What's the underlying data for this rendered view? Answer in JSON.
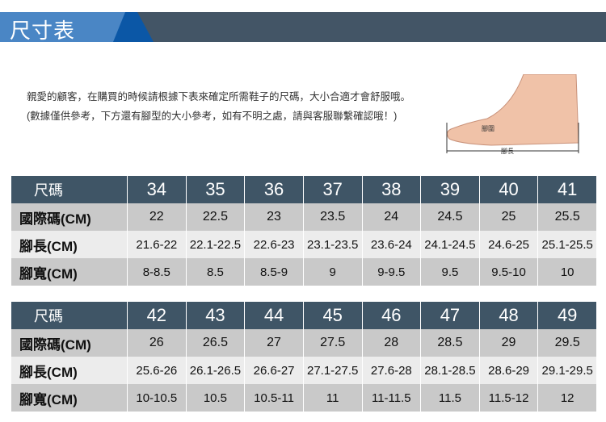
{
  "banner": {
    "title": "尺寸表"
  },
  "intro": "親愛的顧客，在購買的時候請根據下表來確定所需鞋子的尺碼，大小合適才會舒服哦。 (數據僅供參考，下方還有腳型的大小參考，如有不明之處，請與客服聯繫確認哦！)",
  "foot_labels": {
    "girth": "腳圍",
    "length": "腳長"
  },
  "row_labels": {
    "size": "尺碼",
    "intl": "國際碼(CM)",
    "length": "腳長(CM)",
    "width": "腳寬(CM)"
  },
  "tables": [
    {
      "sizes": [
        "34",
        "35",
        "36",
        "37",
        "38",
        "39",
        "40",
        "41"
      ],
      "intl": [
        "22",
        "22.5",
        "23",
        "23.5",
        "24",
        "24.5",
        "25",
        "25.5"
      ],
      "length": [
        "21.6-22",
        "22.1-22.5",
        "22.6-23",
        "23.1-23.5",
        "23.6-24",
        "24.1-24.5",
        "24.6-25",
        "25.1-25.5"
      ],
      "width": [
        "8-8.5",
        "8.5",
        "8.5-9",
        "9",
        "9-9.5",
        "9.5",
        "9.5-10",
        "10"
      ]
    },
    {
      "sizes": [
        "42",
        "43",
        "44",
        "45",
        "46",
        "47",
        "48",
        "49"
      ],
      "intl": [
        "26",
        "26.5",
        "27",
        "27.5",
        "28",
        "28.5",
        "29",
        "29.5"
      ],
      "length": [
        "25.6-26",
        "26.1-26.5",
        "26.6-27",
        "27.1-27.5",
        "27.6-28",
        "28.1-28.5",
        "28.6-29",
        "29.1-29.5"
      ],
      "width": [
        "10-10.5",
        "10.5",
        "10.5-11",
        "11",
        "11-11.5",
        "11.5",
        "11.5-12",
        "12"
      ]
    }
  ]
}
